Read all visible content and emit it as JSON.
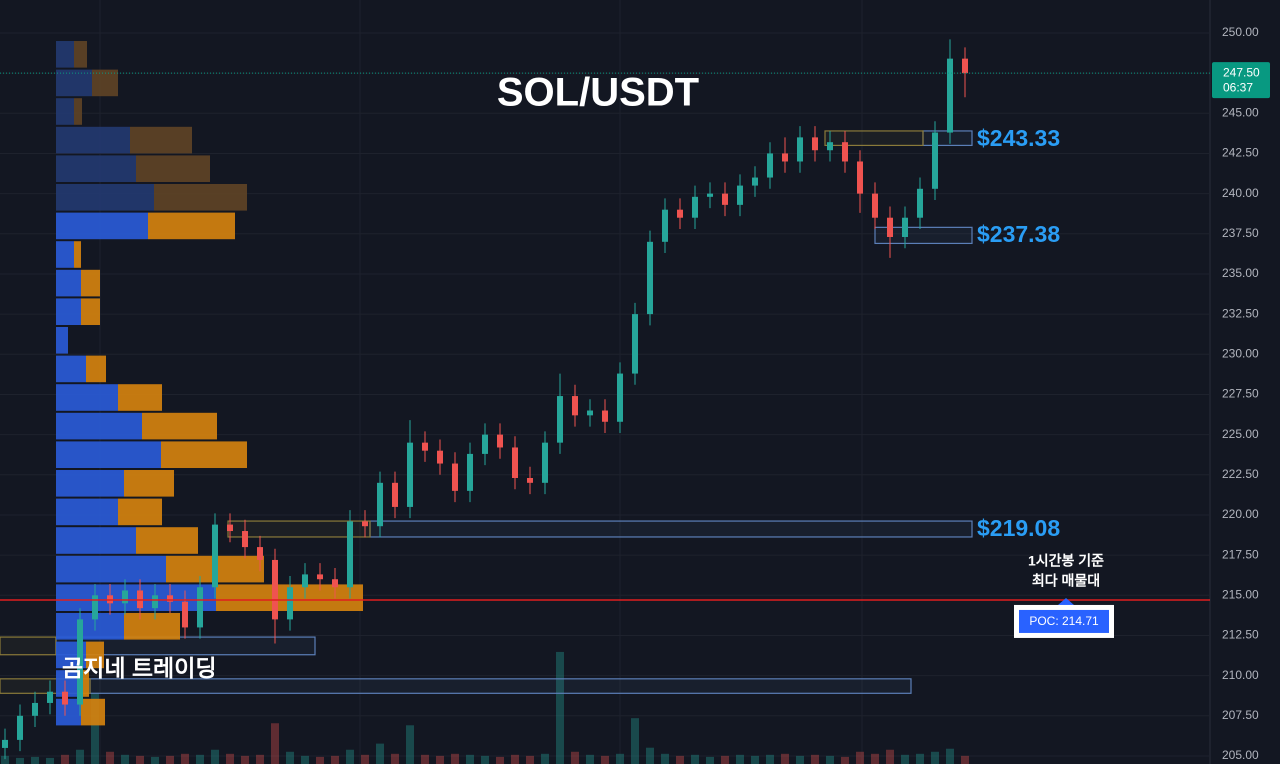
{
  "chart_data": {
    "type": "candlestick",
    "title": "SOL/USDT",
    "watermark": "곰지네 트레이딩",
    "ylim": [
      204.5,
      252.05
    ],
    "yticks": [
      {
        "value": 205,
        "label": "205.00"
      },
      {
        "value": 207.5,
        "label": "207.50"
      },
      {
        "value": 210,
        "label": "210.00"
      },
      {
        "value": 212.5,
        "label": "212.50"
      },
      {
        "value": 215,
        "label": "215.00"
      },
      {
        "value": 217.5,
        "label": "217.50"
      },
      {
        "value": 220,
        "label": "220.00"
      },
      {
        "value": 222.5,
        "label": "222.50"
      },
      {
        "value": 225,
        "label": "225.00"
      },
      {
        "value": 227.5,
        "label": "227.50"
      },
      {
        "value": 230,
        "label": "230.00"
      },
      {
        "value": 232.5,
        "label": "232.50"
      },
      {
        "value": 235,
        "label": "235.00"
      },
      {
        "value": 237.5,
        "label": "237.50"
      },
      {
        "value": 240,
        "label": "240.00"
      },
      {
        "value": 242.5,
        "label": "242.50"
      },
      {
        "value": 245,
        "label": "245.00"
      },
      {
        "value": 247.5,
        "label": "247.50"
      },
      {
        "value": 250,
        "label": "250.00"
      }
    ],
    "grid": true,
    "up_color": "#26a69a",
    "down_color": "#ef5350",
    "open": [
      205.5,
      206.0,
      207.5,
      208.3,
      209.0,
      208.2,
      213.5,
      215.0,
      214.5,
      215.3,
      214.2,
      215.0,
      214.6,
      213.0,
      215.5,
      219.4,
      219.0,
      218.0,
      217.2,
      213.5,
      215.5,
      216.3,
      216.0,
      215.5,
      219.6,
      219.3,
      222.0,
      220.5,
      224.5,
      224.0,
      223.2,
      221.5,
      223.8,
      225.0,
      224.2,
      222.3,
      222.0,
      224.5,
      227.4,
      226.2,
      226.5,
      225.8,
      228.8,
      232.5,
      237.0,
      239.0,
      238.5,
      239.8,
      240.0,
      239.3,
      240.5,
      241.0,
      242.5,
      242.0,
      243.5,
      242.7,
      243.2,
      242.0,
      240.0,
      238.5,
      237.3,
      238.5,
      240.3,
      243.8,
      248.4
    ],
    "high": [
      206.7,
      208.2,
      209.0,
      209.7,
      209.7,
      214.2,
      215.7,
      215.7,
      216.0,
      216.0,
      215.7,
      215.7,
      215.3,
      216.2,
      220.1,
      220.1,
      219.7,
      218.7,
      217.9,
      216.2,
      217.0,
      217.0,
      216.7,
      220.3,
      220.3,
      222.7,
      222.7,
      225.9,
      225.2,
      224.7,
      223.9,
      224.5,
      225.7,
      225.7,
      224.9,
      223.0,
      225.2,
      228.8,
      228.1,
      227.2,
      227.2,
      229.5,
      233.2,
      237.7,
      239.7,
      239.7,
      240.5,
      240.7,
      240.7,
      241.2,
      241.7,
      243.2,
      243.5,
      244.2,
      244.2,
      243.9,
      243.9,
      242.7,
      240.7,
      239.2,
      239.2,
      241.0,
      244.5,
      249.6,
      249.1
    ],
    "low": [
      204.8,
      205.3,
      206.8,
      207.6,
      207.5,
      207.5,
      212.8,
      213.8,
      213.8,
      213.5,
      213.5,
      213.9,
      212.3,
      212.3,
      214.8,
      218.3,
      217.3,
      216.5,
      212.0,
      212.8,
      214.8,
      215.3,
      214.8,
      214.8,
      218.6,
      218.6,
      219.8,
      219.8,
      223.3,
      222.5,
      220.8,
      220.8,
      223.1,
      223.5,
      221.6,
      221.3,
      221.3,
      223.8,
      225.5,
      225.5,
      225.1,
      225.1,
      228.1,
      231.8,
      236.3,
      237.8,
      237.8,
      239.1,
      238.6,
      238.6,
      239.8,
      240.3,
      241.3,
      241.3,
      242.0,
      242.0,
      241.3,
      238.8,
      237.8,
      236.0,
      236.6,
      237.8,
      239.6,
      243.1,
      246.0
    ],
    "close": [
      206.0,
      207.5,
      208.3,
      209.0,
      208.2,
      213.5,
      215.0,
      214.5,
      215.3,
      214.2,
      215.0,
      214.6,
      213.0,
      215.5,
      219.4,
      219.0,
      218.0,
      217.2,
      213.5,
      215.5,
      216.3,
      216.0,
      215.5,
      219.6,
      219.3,
      222.0,
      220.5,
      224.5,
      224.0,
      223.2,
      221.5,
      223.8,
      225.0,
      224.2,
      222.3,
      222.0,
      224.5,
      227.4,
      226.2,
      226.5,
      225.8,
      228.8,
      232.5,
      237.0,
      239.0,
      238.5,
      239.8,
      240.0,
      239.3,
      240.5,
      241.0,
      242.5,
      242.0,
      243.5,
      242.7,
      243.2,
      242.0,
      240.0,
      238.5,
      237.3,
      238.5,
      240.3,
      243.8,
      248.4,
      247.5
    ],
    "volume": [
      8,
      6,
      7,
      6,
      9,
      14,
      70,
      12,
      9,
      8,
      7,
      8,
      10,
      9,
      14,
      10,
      8,
      9,
      40,
      12,
      8,
      7,
      8,
      14,
      9,
      20,
      10,
      38,
      9,
      8,
      10,
      9,
      8,
      7,
      9,
      8,
      10,
      110,
      12,
      9,
      8,
      10,
      45,
      16,
      10,
      8,
      9,
      7,
      8,
      9,
      8,
      9,
      10,
      8,
      9,
      8,
      7,
      12,
      10,
      14,
      9,
      10,
      12,
      15,
      8
    ],
    "volume_ylim": [
      0,
      150
    ],
    "profile": {
      "bins": [
        206.84,
        208.62,
        210.4,
        212.18,
        213.96,
        215.74,
        217.52,
        219.3,
        221.08,
        222.86,
        224.64,
        226.42,
        228.2,
        229.98,
        231.76,
        233.54,
        235.32,
        237.1,
        238.88,
        240.66,
        242.44,
        244.22,
        246.0,
        247.78,
        249.56
      ],
      "xlim": [
        0,
        1154
      ],
      "value_area_high": 238.88,
      "series": [
        {
          "color": "#2a5bd7",
          "dim_color": "#233a70",
          "values": [
            25,
            25,
            30,
            68,
            160,
            110,
            80,
            62,
            68,
            105,
            86,
            62,
            30,
            12,
            25,
            25,
            18,
            92,
            98,
            80,
            74,
            18,
            36,
            18
          ]
        },
        {
          "color": "#d4820f",
          "dim_color": "#5e4326",
          "values": [
            24,
            8,
            18,
            56,
            147,
            98,
            62,
            44,
            50,
            86,
            75,
            44,
            20,
            0,
            19,
            19,
            7,
            87,
            93,
            74,
            62,
            8,
            26,
            13
          ]
        }
      ]
    },
    "zones": [
      {
        "low": 243.0,
        "high": 243.9,
        "color": "#5b7fb8"
      },
      {
        "low": 243.0,
        "high": 243.9,
        "color": "#8a7a3a"
      },
      {
        "low": 236.9,
        "high": 237.9,
        "color": "#5b7fb8"
      },
      {
        "low": 218.63,
        "high": 219.62,
        "color": "#5b7fb8"
      },
      {
        "low": 218.63,
        "high": 219.62,
        "color": "#8a7a3a"
      },
      {
        "low": 211.3,
        "high": 212.4,
        "color": "#5b7fb8"
      },
      {
        "low": 211.3,
        "high": 212.4,
        "color": "#8a7a3a"
      },
      {
        "low": 208.9,
        "high": 209.8,
        "color": "#5b7fb8"
      },
      {
        "low": 208.9,
        "high": 209.8,
        "color": "#8a7a3a"
      }
    ],
    "levels": [
      {
        "value": 243.33,
        "label": "$243.33"
      },
      {
        "value": 237.38,
        "label": "$237.38"
      },
      {
        "value": 219.08,
        "label": "$219.08"
      }
    ],
    "level_color": "#2a9df4",
    "poc": {
      "value": 214.71,
      "label": "POC: 214.71",
      "color": "#e01e1e",
      "annotation": [
        "1시간봉 기준",
        "최다 매물대"
      ]
    },
    "last_price": {
      "value": 247.5,
      "label": "247.50",
      "countdown": "06:37",
      "color": "#089981"
    }
  }
}
